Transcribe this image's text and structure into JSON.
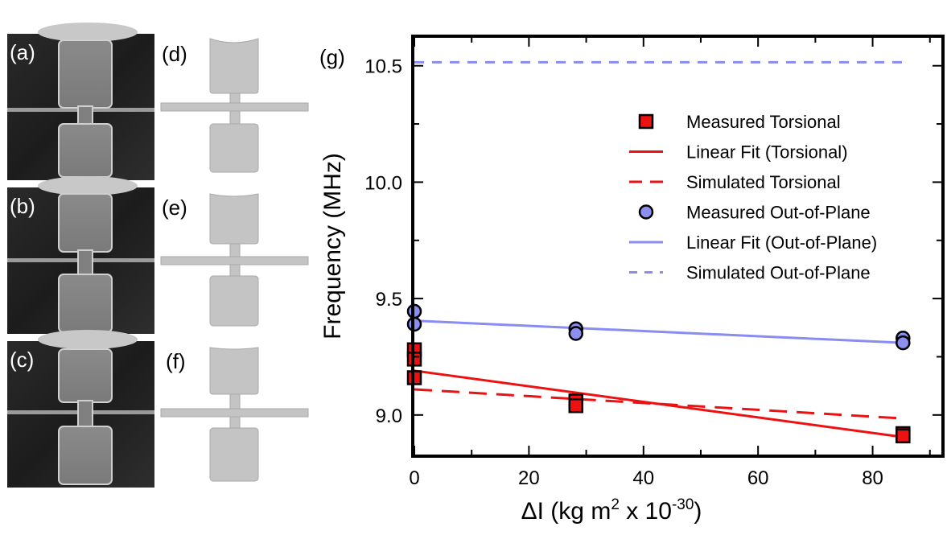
{
  "panels": {
    "sem": [
      {
        "label": "(a)",
        "mass_top": true
      },
      {
        "label": "(b)",
        "mass_top": true
      },
      {
        "label": "(c)",
        "mass_top": true
      }
    ],
    "sim": [
      {
        "label": "(d)"
      },
      {
        "label": "(e)"
      },
      {
        "label": "(f)"
      }
    ]
  },
  "chart_data": {
    "type": "scatter",
    "panel_label": "(g)",
    "xlabel_main": "ΔI (kg m",
    "xlabel_sup1": "2",
    "xlabel_mid": " x 10",
    "xlabel_sup2": "-30",
    "xlabel_end": ")",
    "ylabel": "Frequency (MHz)",
    "xlim": [
      0,
      92
    ],
    "ylim": [
      8.83,
      10.62
    ],
    "xticks": [
      0,
      20,
      40,
      60,
      80
    ],
    "xtick_labels": [
      "0",
      "20",
      "40",
      "60",
      "80"
    ],
    "yticks": [
      9.0,
      9.5,
      10.0,
      10.5
    ],
    "ytick_labels": [
      "9.0",
      "9.5",
      "10.0",
      "10.5"
    ],
    "colors": {
      "torsional": "#ee1111",
      "outofplane": "#8c8ef0",
      "outofplane_line": "#8a8cf2"
    },
    "series": [
      {
        "name": "Measured Torsional",
        "kind": "square",
        "x": [
          0,
          0,
          0,
          28.2,
          28.2,
          85.3,
          85.3
        ],
        "y": [
          9.28,
          9.24,
          9.16,
          9.06,
          9.04,
          8.92,
          8.91
        ]
      },
      {
        "name": "Linear Fit (Torsional)",
        "kind": "solid",
        "x": [
          0,
          85.3
        ],
        "y": [
          9.19,
          8.905
        ]
      },
      {
        "name": "Simulated Torsional",
        "kind": "dash",
        "x": [
          0,
          85.3
        ],
        "y": [
          9.11,
          8.985
        ]
      },
      {
        "name": "Measured Out-of-Plane",
        "kind": "circle",
        "x": [
          0,
          0,
          28.2,
          28.2,
          85.3,
          85.3
        ],
        "y": [
          9.445,
          9.39,
          9.37,
          9.35,
          9.33,
          9.31
        ]
      },
      {
        "name": "Linear Fit (Out-of-Plane)",
        "kind": "solid",
        "x": [
          0,
          85.3
        ],
        "y": [
          9.405,
          9.31
        ]
      },
      {
        "name": "Simulated Out-of-Plane",
        "kind": "dash",
        "x": [
          0,
          85.3
        ],
        "y": [
          10.515,
          10.515
        ]
      }
    ],
    "legend": [
      {
        "label": "Measured Torsional",
        "marker": "square",
        "color_key": "torsional"
      },
      {
        "label": "Linear Fit (Torsional)",
        "marker": "solid",
        "color_key": "torsional"
      },
      {
        "label": "Simulated Torsional",
        "marker": "dash",
        "color_key": "torsional"
      },
      {
        "label": "Measured Out-of-Plane",
        "marker": "circle",
        "color_key": "outofplane"
      },
      {
        "label": "Linear Fit (Out-of-Plane)",
        "marker": "solid",
        "color_key": "outofplane_line"
      },
      {
        "label": "Simulated Out-of-Plane",
        "marker": "dash",
        "color_key": "outofplane_line"
      }
    ],
    "legend_position": "upper-right"
  }
}
